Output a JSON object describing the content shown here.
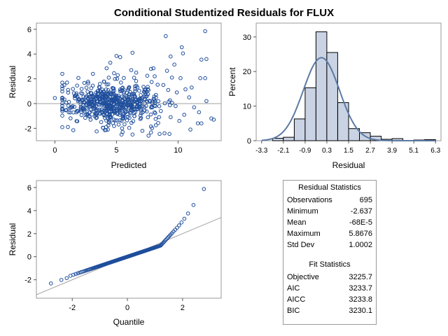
{
  "title": "Conditional Studentized Residuals for FLUX",
  "chart_data": [
    {
      "type": "scatter",
      "panel": "residual-vs-predicted",
      "xlabel": "Predicted",
      "ylabel": "Residual",
      "xlim": [
        -1.5,
        13.5
      ],
      "ylim": [
        -3,
        6.5
      ],
      "xticks": [
        "0",
        "5",
        "10"
      ],
      "yticks": [
        "-2",
        "0",
        "2",
        "4",
        "6"
      ],
      "reference_line_y": 0,
      "points": [
        [
          0,
          0.45
        ],
        [
          9,
          5.45
        ],
        [
          12.2,
          5.85
        ],
        [
          10.3,
          4.55
        ],
        [
          10.4,
          4.05
        ],
        [
          11.9,
          3.55
        ],
        [
          12.3,
          3.6
        ],
        [
          6.3,
          4.1
        ],
        [
          5,
          3.85
        ],
        [
          5.3,
          3.75
        ],
        [
          9.4,
          3.8
        ],
        [
          9.7,
          3.15
        ],
        [
          4.5,
          3.3
        ],
        [
          4.2,
          2.85
        ],
        [
          7.8,
          2.8
        ],
        [
          8,
          2.85
        ],
        [
          9.1,
          2.65
        ],
        [
          4.8,
          2.45
        ],
        [
          5.1,
          2.3
        ],
        [
          7.5,
          2.25
        ],
        [
          8.1,
          2.2
        ],
        [
          9.5,
          2.1
        ],
        [
          10.2,
          2.05
        ],
        [
          11.8,
          2.05
        ],
        [
          12.2,
          2.05
        ],
        [
          6.2,
          2.7
        ],
        [
          6.6,
          2.5
        ],
        [
          8.9,
          -2.4
        ],
        [
          9.3,
          -2.45
        ],
        [
          7.6,
          -2.6
        ],
        [
          8.5,
          -2.45
        ],
        [
          11,
          -2.1
        ],
        [
          12.9,
          -1.3
        ],
        [
          12.7,
          -1.2
        ],
        [
          11.6,
          -1.6
        ],
        [
          11.9,
          -1.6
        ],
        [
          6.3,
          -2.5
        ],
        [
          5.5,
          -2.3
        ],
        [
          4.3,
          -2.1
        ],
        [
          3.9,
          -1.95
        ],
        [
          7.1,
          -2.2
        ],
        [
          7.8,
          -1.85
        ],
        [
          8.2,
          -1.75
        ],
        [
          10.5,
          -0.9
        ],
        [
          11.3,
          -0.3
        ],
        [
          12.3,
          0.2
        ],
        [
          10.9,
          0.5
        ],
        [
          10.6,
          1.15
        ],
        [
          11.1,
          1.3
        ],
        [
          11.7,
          -0.7
        ],
        [
          10.1,
          -1.4
        ],
        [
          9.8,
          -0.2
        ],
        [
          9.9,
          0.9
        ],
        [
          9.2,
          1.1
        ],
        [
          8.8,
          1.5
        ],
        [
          8.6,
          -0.6
        ],
        [
          9.4,
          -1.1
        ]
      ]
    },
    {
      "type": "bar",
      "panel": "histogram",
      "xlabel": "Residual",
      "ylabel": "Percent",
      "xlim": [
        -3.6,
        6.6
      ],
      "ylim": [
        0,
        34
      ],
      "xticks": [
        "-3.3",
        "-2.1",
        "-0.9",
        "0.3",
        "1.5",
        "2.7",
        "3.9",
        "5.1",
        "6.3"
      ],
      "yticks": [
        "0",
        "10",
        "20",
        "30"
      ],
      "bin_width": 0.6,
      "bins": [
        {
          "x0": -2.7,
          "percent": 0.7
        },
        {
          "x0": -2.1,
          "percent": 1.0
        },
        {
          "x0": -1.5,
          "percent": 6.3
        },
        {
          "x0": -0.9,
          "percent": 15.3
        },
        {
          "x0": -0.3,
          "percent": 31.5
        },
        {
          "x0": 0.3,
          "percent": 25.5
        },
        {
          "x0": 0.9,
          "percent": 11.0
        },
        {
          "x0": 1.5,
          "percent": 3.5
        },
        {
          "x0": 2.1,
          "percent": 2.3
        },
        {
          "x0": 2.7,
          "percent": 1.3
        },
        {
          "x0": 3.3,
          "percent": 0.4
        },
        {
          "x0": 3.9,
          "percent": 0.6
        },
        {
          "x0": 5.1,
          "percent": 0.2
        },
        {
          "x0": 5.7,
          "percent": 0.3
        }
      ],
      "density_curve": {
        "mean": 0,
        "sd": 1.0,
        "peak_percent": 24
      }
    },
    {
      "type": "scatter",
      "panel": "qq-plot",
      "xlabel": "Quantile",
      "ylabel": "Residual",
      "xlim": [
        -3.3,
        3.4
      ],
      "ylim": [
        -3.6,
        6.6
      ],
      "xticks": [
        "-2",
        "0",
        "2"
      ],
      "yticks": [
        "-2",
        "0",
        "2",
        "4",
        "6"
      ],
      "reference_line": {
        "intercept": 0,
        "slope": 1.0
      }
    }
  ],
  "stats_table": {
    "residual_header": "Residual Statistics",
    "residual_rows": [
      {
        "label": "Observations",
        "value": "695"
      },
      {
        "label": "Minimum",
        "value": "-2.637"
      },
      {
        "label": "Mean",
        "value": "-68E-5"
      },
      {
        "label": "Maximum",
        "value": "5.8676"
      },
      {
        "label": "Std Dev",
        "value": "1.0002"
      }
    ],
    "fit_header": "Fit Statistics",
    "fit_rows": [
      {
        "label": "Objective",
        "value": "3225.7"
      },
      {
        "label": "AIC",
        "value": "3233.7"
      },
      {
        "label": "AICC",
        "value": "3233.8"
      },
      {
        "label": "BIC",
        "value": "3230.1"
      }
    ]
  },
  "colors": {
    "marker": "#1f4e9c",
    "bar_fill": "#c9d3e3",
    "bar_stroke": "#000000",
    "curve": "#5b7aa3",
    "ref_line": "#a0a0a0",
    "axis": "#555555"
  }
}
